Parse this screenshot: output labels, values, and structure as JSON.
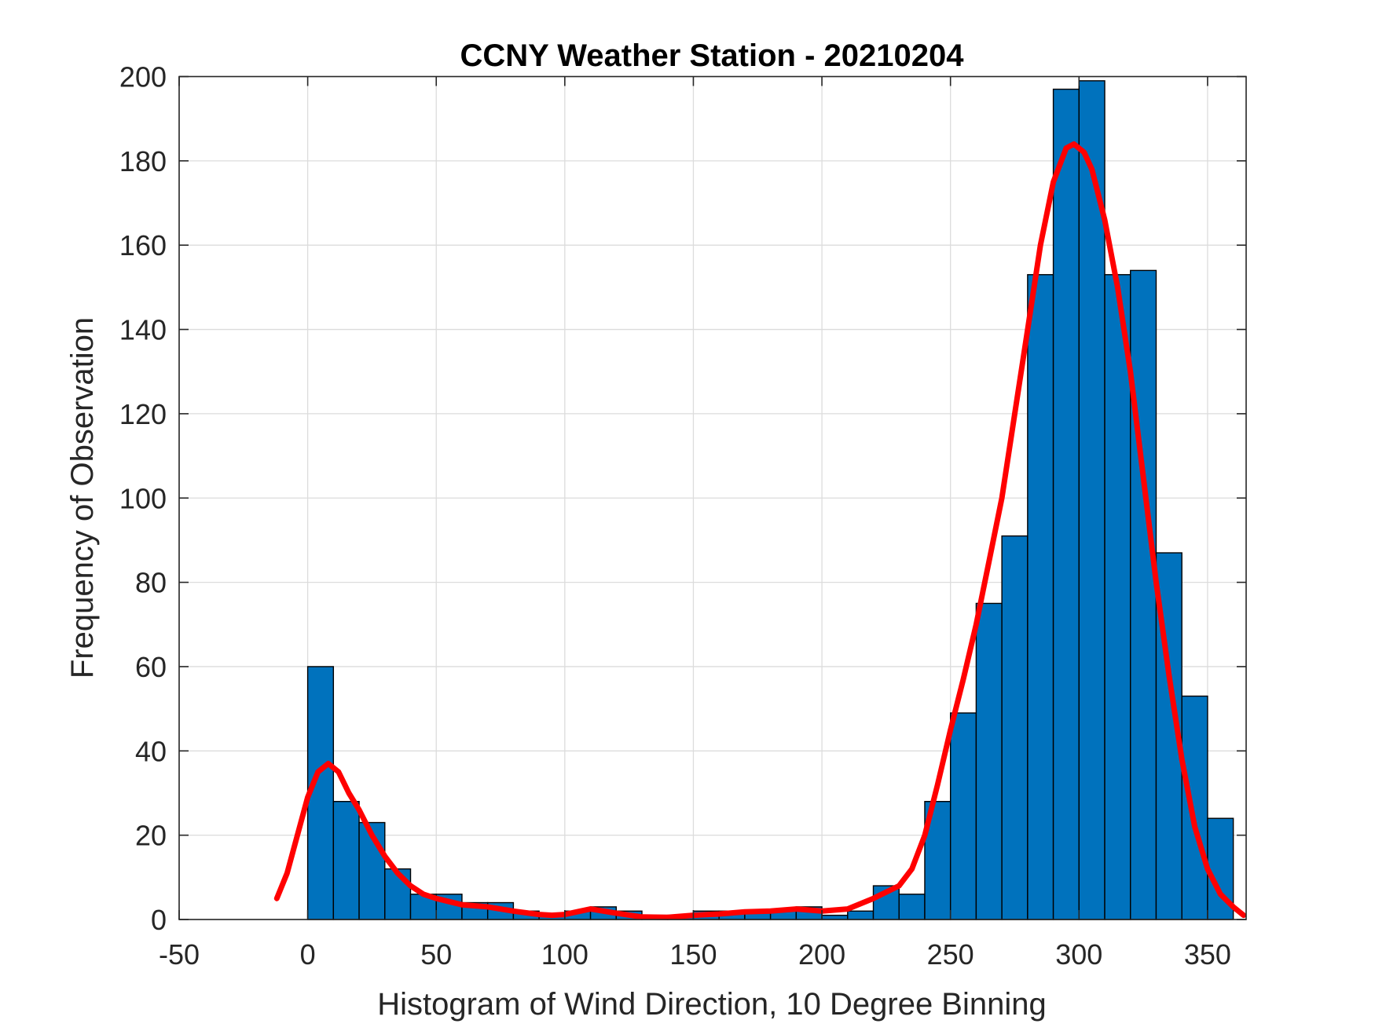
{
  "chart_data": {
    "type": "bar",
    "title": "CCNY Weather Station - 20210204",
    "xlabel": "Histogram of Wind Direction, 10 Degree Binning",
    "ylabel": "Frequency of Observation",
    "xlim": [
      -50,
      365
    ],
    "ylim": [
      0,
      200
    ],
    "xticks": [
      -50,
      0,
      50,
      100,
      150,
      200,
      250,
      300,
      350
    ],
    "yticks": [
      0,
      20,
      40,
      60,
      80,
      100,
      120,
      140,
      160,
      180,
      200
    ],
    "grid": true,
    "bar_color": "#0072BD",
    "curve_color": "#FF0000",
    "bins": {
      "width": 10,
      "left_edges": [
        0,
        10,
        20,
        30,
        40,
        50,
        60,
        70,
        80,
        90,
        100,
        110,
        120,
        130,
        140,
        150,
        160,
        170,
        180,
        190,
        200,
        210,
        220,
        230,
        240,
        250,
        260,
        270,
        280,
        290,
        300,
        310,
        320,
        330,
        340,
        350
      ],
      "counts": [
        60,
        28,
        23,
        12,
        6,
        6,
        4,
        4,
        2,
        1,
        2,
        3,
        2,
        1,
        1,
        2,
        2,
        2,
        2,
        3,
        1,
        2,
        8,
        6,
        28,
        49,
        75,
        91,
        153,
        197,
        199,
        153,
        154,
        87,
        53,
        24
      ]
    },
    "fit_curve": {
      "x": [
        -12,
        -8,
        -4,
        0,
        4,
        8,
        12,
        16,
        20,
        25,
        30,
        35,
        40,
        45,
        50,
        60,
        70,
        80,
        90,
        95,
        100,
        110,
        120,
        130,
        140,
        150,
        160,
        170,
        180,
        190,
        200,
        210,
        220,
        230,
        235,
        240,
        245,
        250,
        255,
        260,
        265,
        270,
        275,
        280,
        285,
        290,
        295,
        298,
        302,
        305,
        310,
        315,
        320,
        325,
        330,
        335,
        340,
        345,
        350,
        355,
        360,
        364
      ],
      "y": [
        5,
        11,
        20,
        29,
        35,
        37,
        35,
        30,
        26,
        20,
        15,
        11,
        8,
        6,
        5,
        3.5,
        3,
        2,
        1.2,
        1,
        1.2,
        2.5,
        1.5,
        0.6,
        0.5,
        1,
        1.3,
        1.8,
        2,
        2.5,
        2,
        2.5,
        5,
        8,
        12,
        20,
        32,
        45,
        57,
        70,
        85,
        100,
        120,
        140,
        160,
        175,
        183,
        184,
        182,
        178,
        166,
        150,
        130,
        105,
        80,
        58,
        38,
        22,
        12,
        6,
        3,
        1
      ]
    }
  }
}
